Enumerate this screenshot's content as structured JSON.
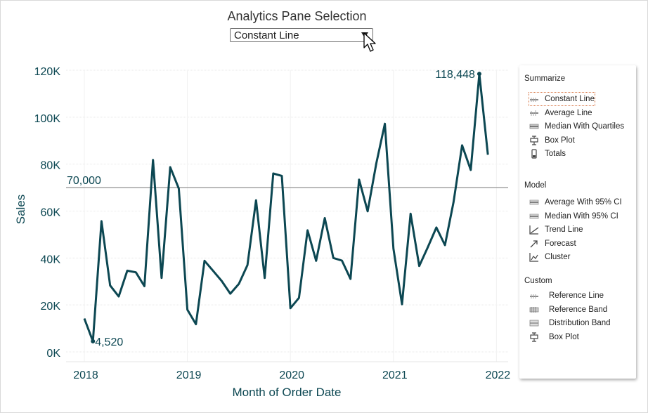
{
  "header": {
    "title": "Analytics Pane Selection",
    "dropdown_value": "Constant Line"
  },
  "analytics_panel": {
    "sections": [
      {
        "title": "Summarize",
        "items": [
          {
            "label": "Constant Line",
            "icon": "constant-line-icon",
            "selected": true
          },
          {
            "label": "Average Line",
            "icon": "average-line-icon"
          },
          {
            "label": "Median With Quartiles",
            "icon": "median-quartiles-icon"
          },
          {
            "label": "Box Plot",
            "icon": "box-plot-icon"
          },
          {
            "label": "Totals",
            "icon": "totals-icon"
          }
        ]
      },
      {
        "title": "Model",
        "items": [
          {
            "label": "Average With 95% CI",
            "icon": "average-ci-icon"
          },
          {
            "label": "Median With 95% CI",
            "icon": "median-ci-icon"
          },
          {
            "label": "Trend Line",
            "icon": "trend-line-icon"
          },
          {
            "label": "Forecast",
            "icon": "forecast-icon"
          },
          {
            "label": "Cluster",
            "icon": "cluster-icon"
          }
        ]
      },
      {
        "title": "Custom",
        "items": [
          {
            "label": "Reference Line",
            "icon": "reference-line-icon"
          },
          {
            "label": "Reference Band",
            "icon": "reference-band-icon"
          },
          {
            "label": "Distribution Band",
            "icon": "distribution-band-icon"
          },
          {
            "label": "Box Plot",
            "icon": "box-plot-icon"
          }
        ]
      }
    ]
  },
  "chart_data": {
    "type": "line",
    "xlabel": "Month of Order Date",
    "ylabel": "Sales",
    "x_tick_labels": [
      "2018",
      "2019",
      "2020",
      "2021",
      "2022"
    ],
    "y_tick_labels": [
      "0K",
      "20K",
      "40K",
      "60K",
      "80K",
      "100K",
      "120K"
    ],
    "ylim": [
      0,
      120000
    ],
    "grid": true,
    "line_color": "#0c4752",
    "reference_line": {
      "value": 70000,
      "label": "70,000",
      "color": "#9b9b9b"
    },
    "annotations": [
      {
        "label": "4,520",
        "x": "2018-02",
        "y": 4520
      },
      {
        "label": "118,448",
        "x": "2021-11",
        "y": 118448
      }
    ],
    "series": [
      {
        "x": [
          "2018-01",
          "2018-02",
          "2018-03",
          "2018-04",
          "2018-05",
          "2018-06",
          "2018-07",
          "2018-08",
          "2018-09",
          "2018-10",
          "2018-11",
          "2018-12",
          "2019-01",
          "2019-02",
          "2019-03",
          "2019-04",
          "2019-05",
          "2019-06",
          "2019-07",
          "2019-08",
          "2019-09",
          "2019-10",
          "2019-11",
          "2019-12",
          "2020-01",
          "2020-02",
          "2020-03",
          "2020-04",
          "2020-05",
          "2020-06",
          "2020-07",
          "2020-08",
          "2020-09",
          "2020-10",
          "2020-11",
          "2020-12",
          "2021-01",
          "2021-02",
          "2021-03",
          "2021-04",
          "2021-05",
          "2021-06",
          "2021-07",
          "2021-08",
          "2021-09",
          "2021-10",
          "2021-11",
          "2021-12"
        ],
        "values": [
          14200,
          4520,
          55700,
          28300,
          23600,
          34600,
          33900,
          28000,
          81800,
          31500,
          78700,
          69600,
          18000,
          11800,
          38800,
          34500,
          30200,
          24800,
          29000,
          37000,
          64600,
          31500,
          76000,
          75000,
          18600,
          23000,
          51800,
          38800,
          57000,
          40000,
          38900,
          31100,
          73400,
          59900,
          80300,
          97200,
          44000,
          20300,
          58900,
          36600,
          44600,
          53000,
          45500,
          63800,
          88000,
          77500,
          118448,
          84000
        ]
      }
    ]
  }
}
